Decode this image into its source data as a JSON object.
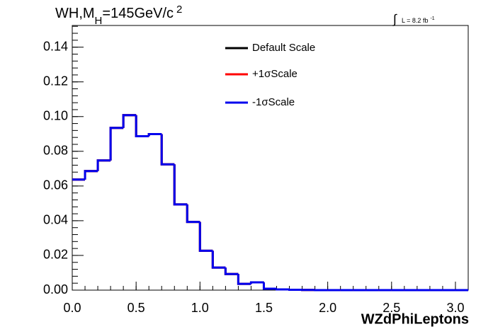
{
  "chart_data": {
    "type": "histogram",
    "title": [
      "WH,M",
      "H",
      "=145GeV/c",
      "2"
    ],
    "annotation": [
      "∫",
      "L = 8.2 fb",
      "-1"
    ],
    "xlabel": "WZdPhiLeptons",
    "bins": [
      0,
      0.1,
      0.2,
      0.3,
      0.4,
      0.5,
      0.6,
      0.7,
      0.8,
      0.9,
      1.0,
      1.1,
      1.2,
      1.3,
      1.4,
      1.5,
      1.6,
      1.7,
      1.8,
      1.9,
      2.0,
      2.1,
      2.2,
      2.3,
      2.4,
      2.5,
      2.6,
      2.7,
      2.8,
      2.9,
      3.0,
      3.1
    ],
    "series": [
      {
        "name": "Default Scale",
        "color": "#000000",
        "values": [
          0.0637,
          0.0686,
          0.0747,
          0.0935,
          0.1008,
          0.0887,
          0.0899,
          0.0725,
          0.0494,
          0.0393,
          0.0227,
          0.013,
          0.0093,
          0.0036,
          0.0045,
          0.0008,
          0.0004,
          0.0002,
          0.0001,
          0,
          0,
          0,
          0,
          0,
          0,
          0,
          0,
          0,
          0,
          0,
          0
        ]
      },
      {
        "name": "+1σScale",
        "color": "#ff0000",
        "values": [
          0.0637,
          0.0686,
          0.0747,
          0.0935,
          0.1008,
          0.0887,
          0.0899,
          0.0725,
          0.0494,
          0.0393,
          0.0227,
          0.013,
          0.0093,
          0.0036,
          0.0045,
          0.0008,
          0.0004,
          0.0002,
          0.0001,
          0,
          0,
          0,
          0,
          0,
          0,
          0,
          0,
          0,
          0,
          0,
          0
        ]
      },
      {
        "name": "-1σScale",
        "color": "#0000ee",
        "values": [
          0.0637,
          0.0686,
          0.0747,
          0.0935,
          0.1008,
          0.0887,
          0.0899,
          0.0725,
          0.0494,
          0.0393,
          0.0227,
          0.013,
          0.0093,
          0.0036,
          0.0045,
          0.0008,
          0.0004,
          0.0002,
          0.0001,
          0,
          0,
          0,
          0,
          0,
          0,
          0,
          0,
          0,
          0,
          0,
          0
        ]
      }
    ],
    "xlim": [
      0,
      3.1
    ],
    "ylim": [
      0,
      0.1525
    ],
    "xticks": [
      {
        "value": 0,
        "label": "0.0"
      },
      0.5,
      {
        "value": 1,
        "label": "1.0"
      },
      1.5,
      {
        "value": 2,
        "label": "2.0"
      },
      2.5,
      {
        "value": 3,
        "label": "3.0"
      }
    ],
    "yticks": [
      {
        "value": 0,
        "label": "0.00"
      },
      0.02,
      0.04,
      0.06,
      0.08,
      {
        "value": 0.1,
        "label": "0.10"
      },
      0.12,
      0.14
    ],
    "grid": false
  }
}
